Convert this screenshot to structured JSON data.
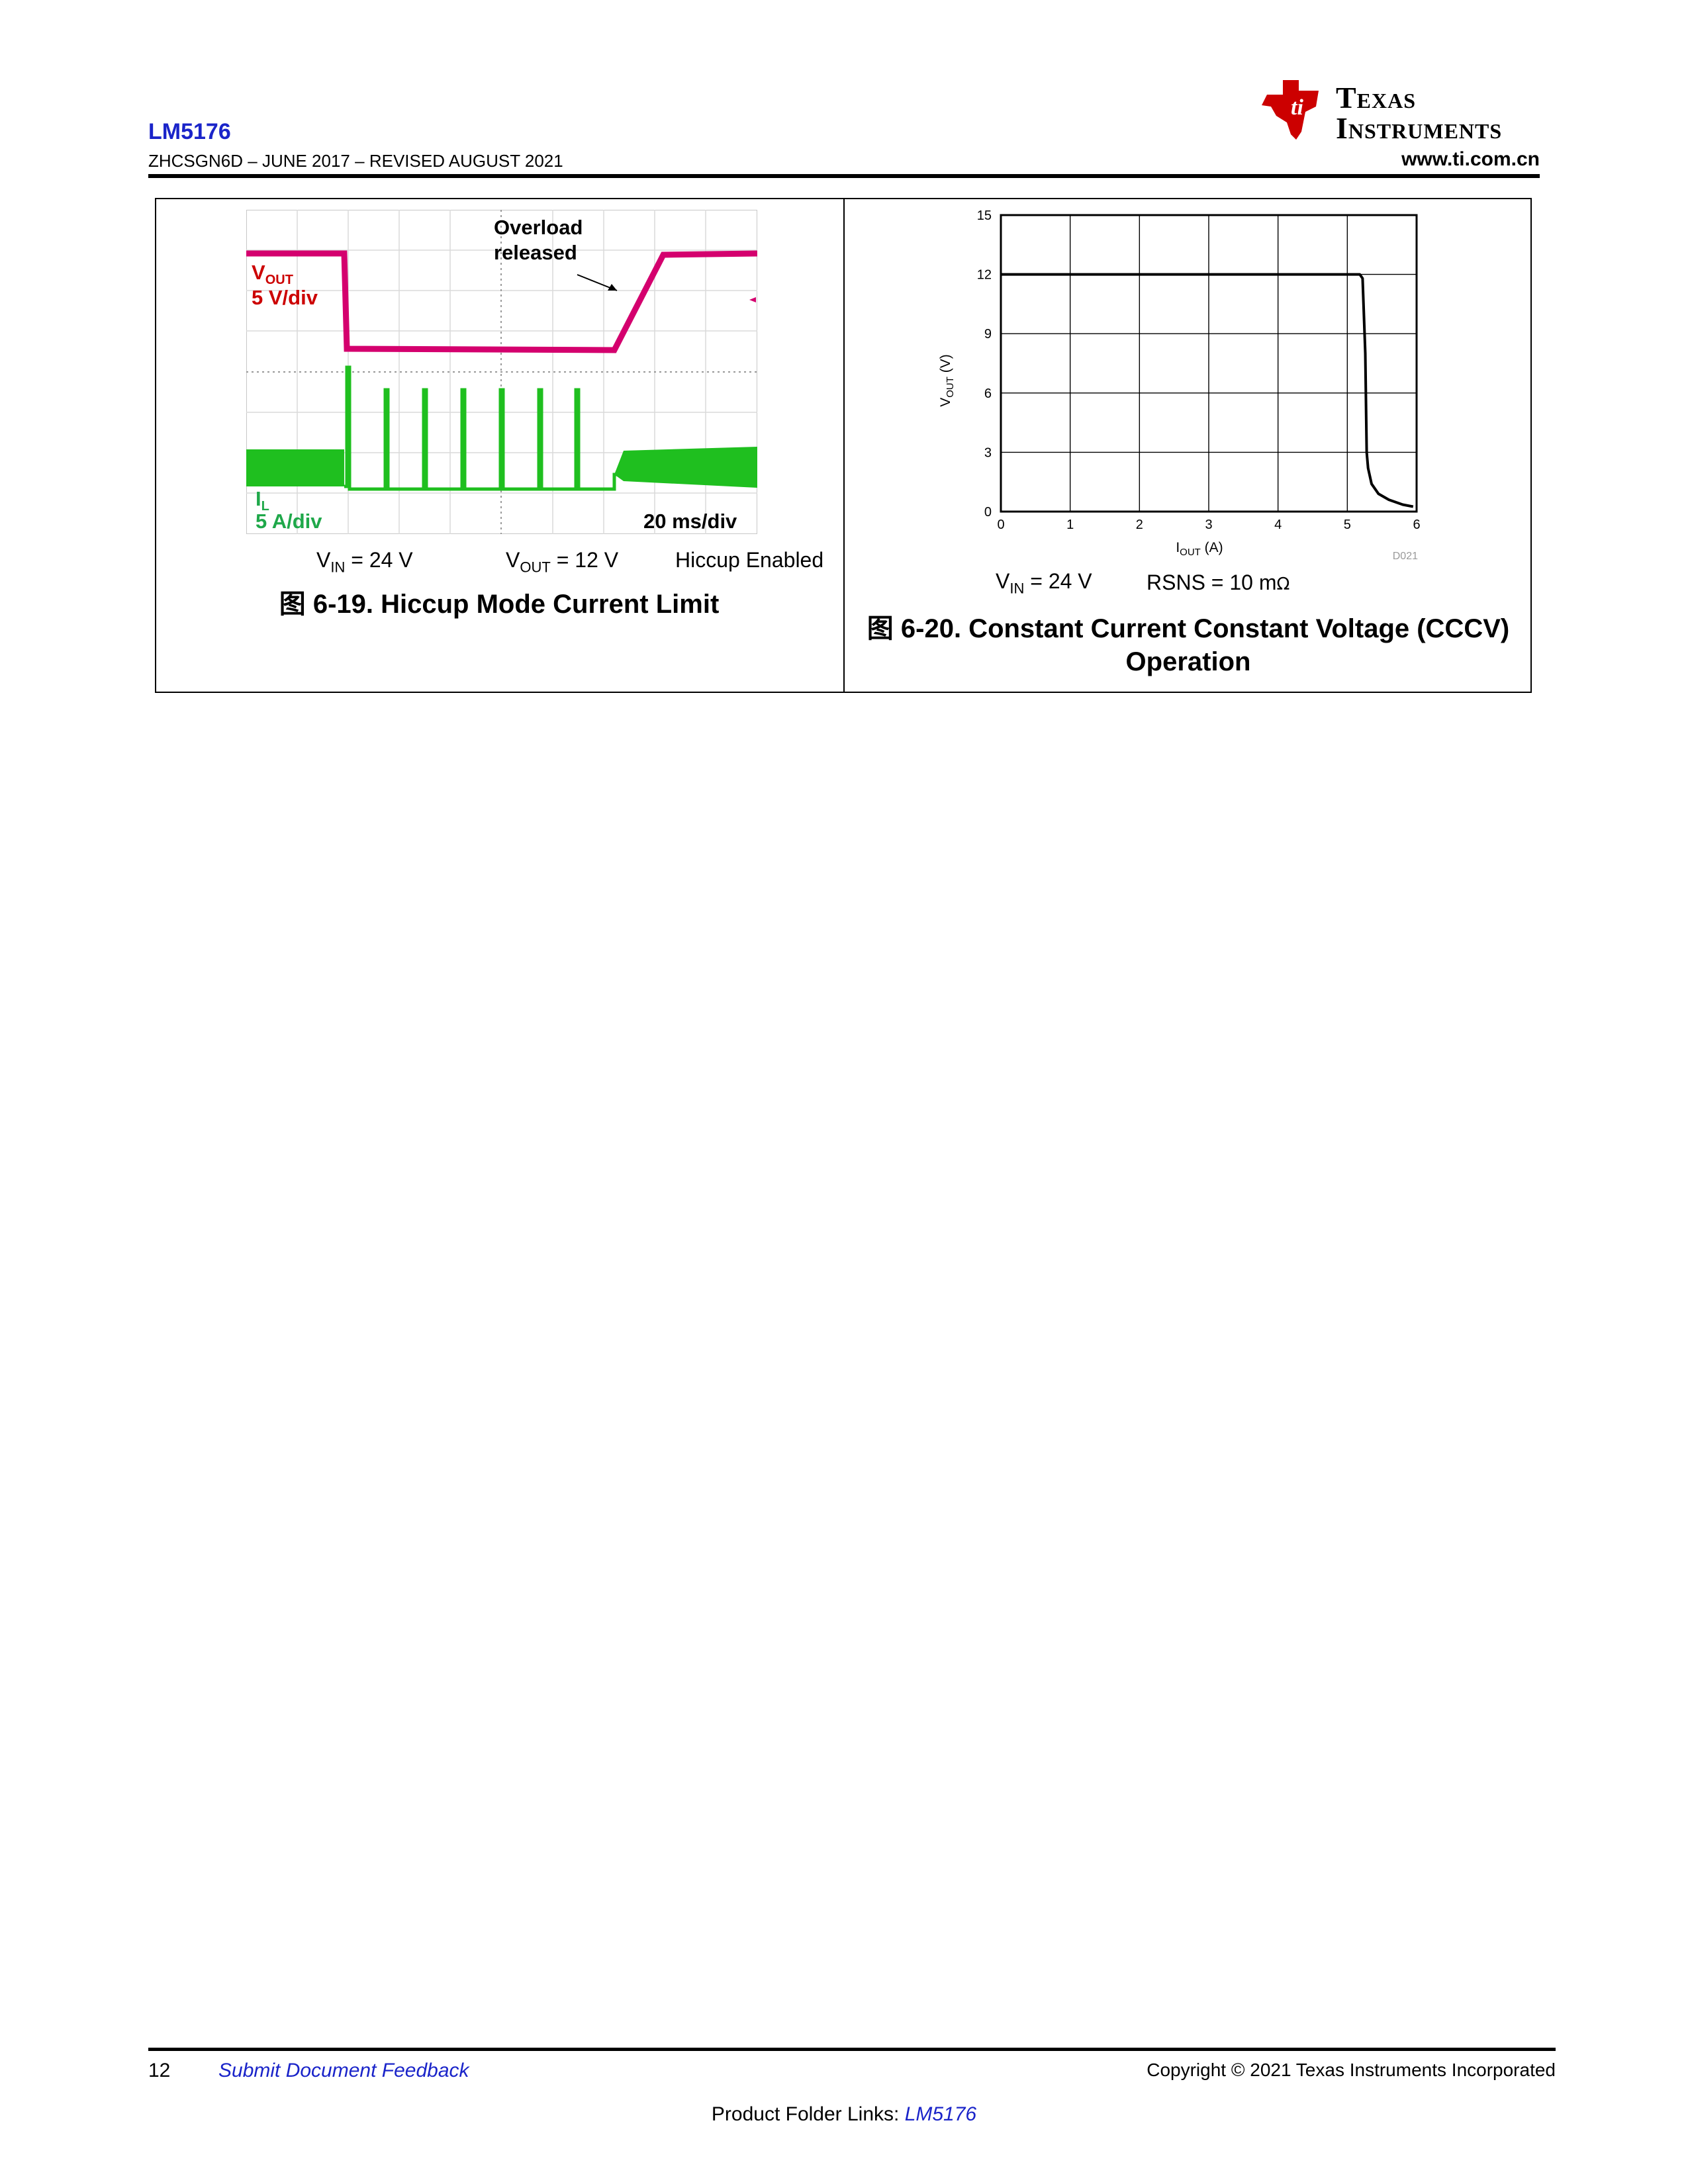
{
  "header": {
    "product": "LM5176",
    "doc_id": "ZHCSGN6D",
    "sep": " – ",
    "date": "JUNE 2017",
    "revised": "REVISED AUGUST 2021",
    "url": "www.ti.com.cn",
    "logo_line1": "Texas",
    "logo_line2": "Instruments",
    "colors": {
      "product": "#1a24c9",
      "logo_red": "#cc0000"
    }
  },
  "figure_19": {
    "scope_annotation": [
      "Overload",
      "released"
    ],
    "vout_label": "V",
    "vout_sub": "OUT",
    "vout_scale": "5 V/div",
    "il_label": "I",
    "il_sub": "L",
    "il_scale": "5 A/div",
    "time_scale": "20 ms/div",
    "cond_vin": "V",
    "cond_vin_sub": "IN",
    "cond_vin_val": " = 24 V",
    "cond_vout": "V",
    "cond_vout_sub": "OUT",
    "cond_vout_val": " = 12 V",
    "cond_mode": "Hiccup Enabled",
    "caption": "图 6-19. Hiccup Mode Current Limit",
    "colors": {
      "vout_trace": "#d4006e",
      "il_trace": "#1fbf1f",
      "vout_text": "#cc0000",
      "il_text": "#1fa84a"
    }
  },
  "figure_20": {
    "caption_line1": "图 6-20. Constant Current Constant Voltage (CCCV)",
    "caption_line2": "Operation",
    "cond_vin": "V",
    "cond_vin_sub": "IN",
    "cond_vin_val": " = 24 V",
    "cond_rsns": "RSNS = 10 m",
    "cond_rsns_unit": "Ω",
    "chart_data": {
      "type": "line",
      "xlabel": "I",
      "xlabel_sub": "OUT",
      "xlabel_unit": " (A)",
      "ylabel": "V",
      "ylabel_sub": "OUT",
      "ylabel_unit": " (V)",
      "xlim": [
        0,
        6
      ],
      "ylim": [
        0,
        15
      ],
      "xticks": [
        "0",
        "1",
        "2",
        "3",
        "4",
        "5",
        "6"
      ],
      "yticks": [
        "0",
        "3",
        "6",
        "9",
        "12",
        "15"
      ],
      "grid": true,
      "tag": "D021",
      "series": [
        {
          "x": [
            0,
            1,
            2,
            3,
            4,
            5,
            5.18,
            5.22,
            5.26,
            5.28,
            5.3,
            5.35,
            5.45,
            5.6,
            5.8,
            5.95
          ],
          "y": [
            12,
            12,
            12,
            12,
            12,
            12,
            12,
            11.8,
            8,
            3,
            2.2,
            1.4,
            0.9,
            0.6,
            0.35,
            0.25
          ]
        }
      ]
    }
  },
  "footer": {
    "page": "12",
    "feedback": "Submit Document Feedback",
    "copyright": "Copyright © 2021 Texas Instruments Incorporated",
    "folder_prefix": "Product Folder Links: ",
    "folder_link": "LM5176"
  }
}
